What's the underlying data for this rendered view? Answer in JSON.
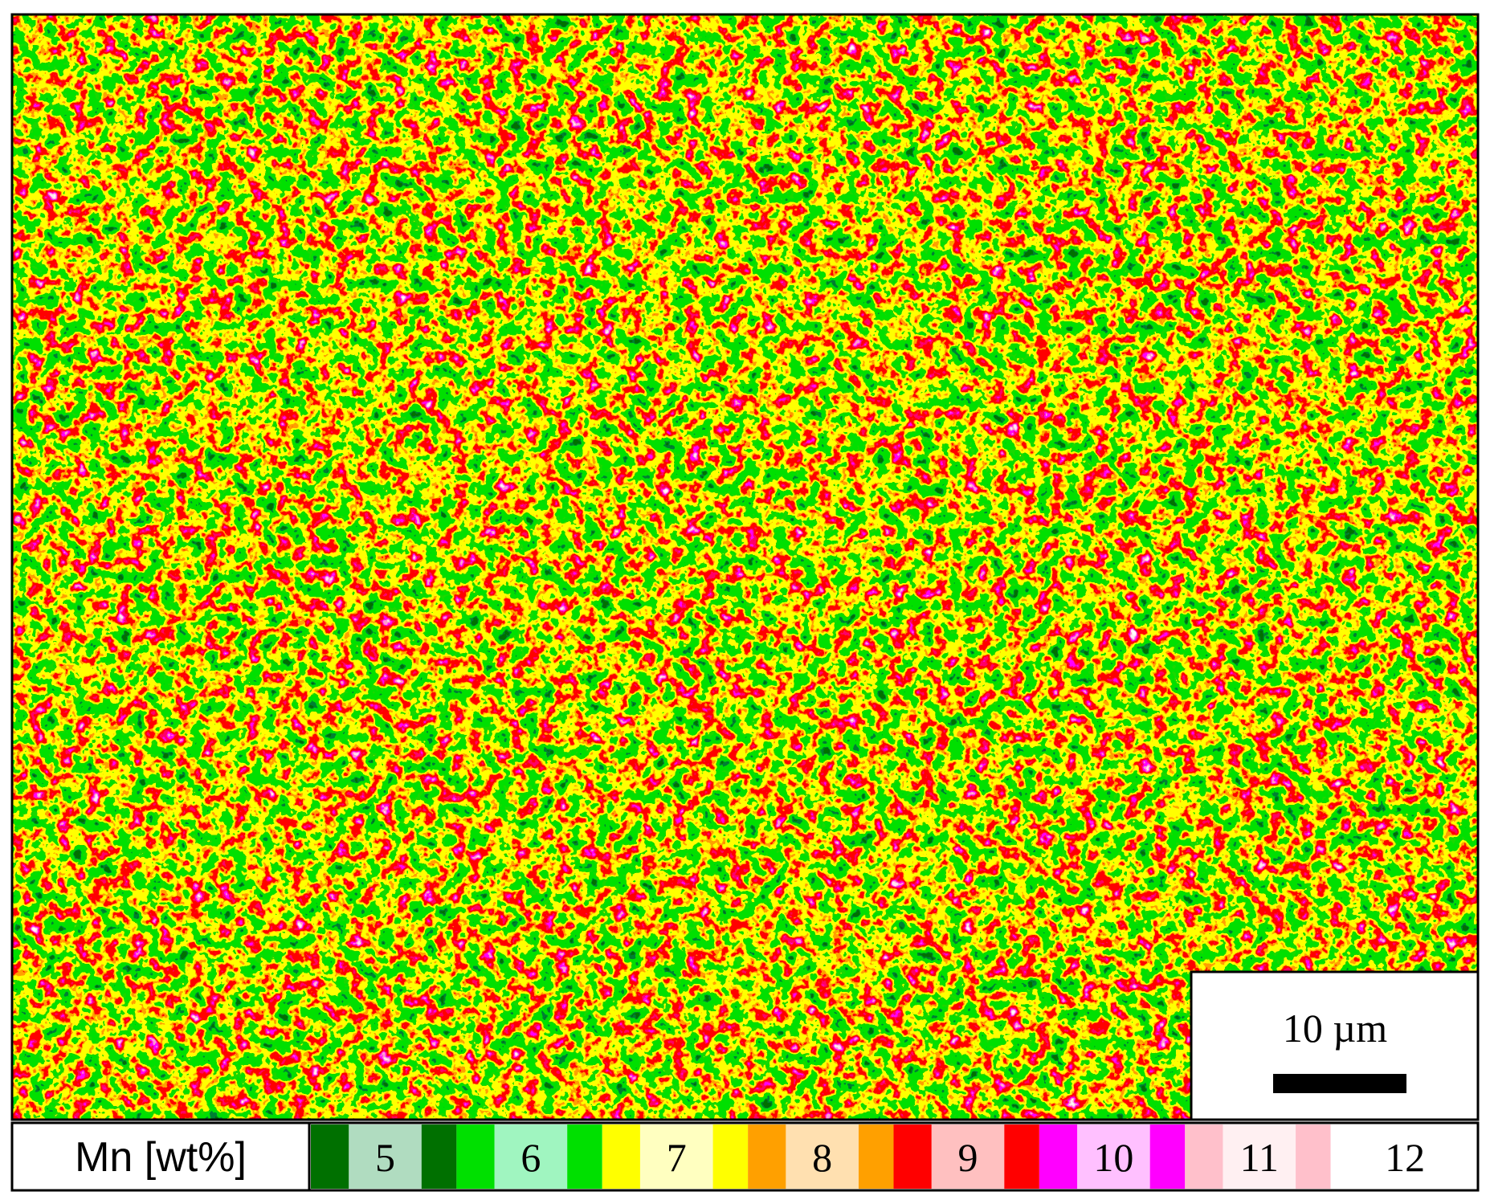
{
  "figure": {
    "legend_label": "Mn [wt%]",
    "legend_ticks": [
      5,
      6,
      7,
      8,
      9,
      10,
      11,
      12
    ],
    "scale_bar": "10 µm"
  }
}
